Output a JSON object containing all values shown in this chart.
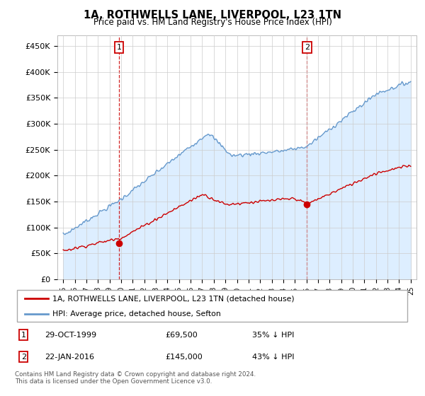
{
  "title": "1A, ROTHWELLS LANE, LIVERPOOL, L23 1TN",
  "subtitle": "Price paid vs. HM Land Registry's House Price Index (HPI)",
  "ylabel_ticks": [
    "£0",
    "£50K",
    "£100K",
    "£150K",
    "£200K",
    "£250K",
    "£300K",
    "£350K",
    "£400K",
    "£450K"
  ],
  "ytick_values": [
    0,
    50000,
    100000,
    150000,
    200000,
    250000,
    300000,
    350000,
    400000,
    450000
  ],
  "ylim": [
    0,
    470000
  ],
  "sale1_year": 1999.83,
  "sale1_price": 69500,
  "sale2_year": 2016.05,
  "sale2_price": 145000,
  "line_color_property": "#cc0000",
  "line_color_hpi": "#6699cc",
  "fill_color_hpi": "#ddeeff",
  "vline_color": "#cc0000",
  "legend_property": "1A, ROTHWELLS LANE, LIVERPOOL, L23 1TN (detached house)",
  "legend_hpi": "HPI: Average price, detached house, Sefton",
  "footnote1": "Contains HM Land Registry data © Crown copyright and database right 2024.",
  "footnote2": "This data is licensed under the Open Government Licence v3.0.",
  "xlim_start": 1994.5,
  "xlim_end": 2025.5,
  "xtick_years": [
    1995,
    1996,
    1997,
    1998,
    1999,
    2000,
    2001,
    2002,
    2003,
    2004,
    2005,
    2006,
    2007,
    2008,
    2009,
    2010,
    2011,
    2012,
    2013,
    2014,
    2015,
    2016,
    2017,
    2018,
    2019,
    2020,
    2021,
    2022,
    2023,
    2024,
    2025
  ]
}
